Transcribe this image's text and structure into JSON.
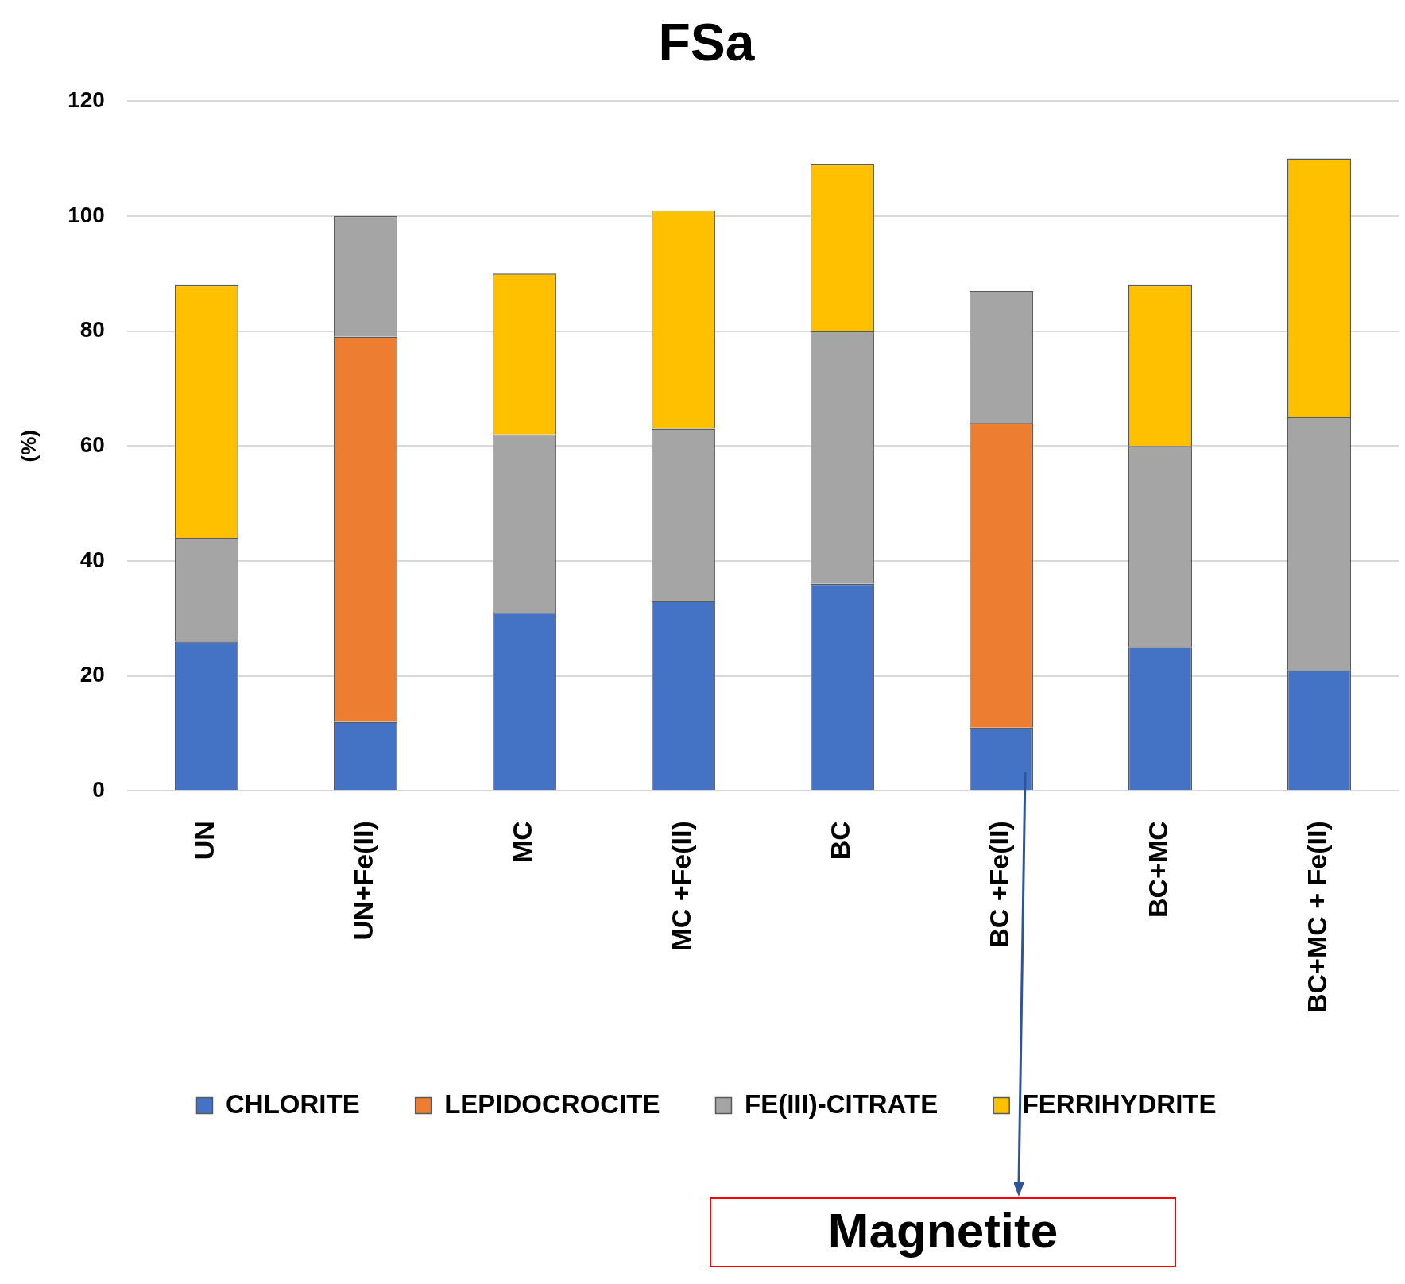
{
  "chart_data": {
    "type": "bar",
    "title": "FSa",
    "ylabel": "(%)",
    "stacked": true,
    "categories": [
      "UN",
      "UN+Fe(II)",
      "MC",
      "MC +Fe(II)",
      "BC",
      "BC +Fe(II)",
      "BC+MC",
      "BC+MC + Fe(II)"
    ],
    "series": [
      {
        "name": "CHLORITE",
        "color": "#4472c4",
        "values": [
          26,
          12,
          31,
          33,
          36,
          11,
          25,
          21
        ]
      },
      {
        "name": "LEPIDOCROCITE",
        "color": "#ed7d31",
        "values": [
          0,
          67,
          0,
          0,
          0,
          53,
          0,
          0
        ]
      },
      {
        "name": "FE(III)-CITRATE",
        "color": "#a5a5a5",
        "values": [
          18,
          21,
          31,
          30,
          44,
          23,
          35,
          44
        ]
      },
      {
        "name": "FERRIHYDRITE",
        "color": "#ffc000",
        "values": [
          44,
          0,
          28,
          38,
          29,
          0,
          28,
          45
        ]
      }
    ],
    "ylim": [
      0,
      120
    ],
    "yticks": [
      0,
      20,
      40,
      60,
      80,
      100,
      120
    ],
    "grid": "y",
    "legend": "bottom",
    "annotations": [
      "Magnetite"
    ]
  }
}
